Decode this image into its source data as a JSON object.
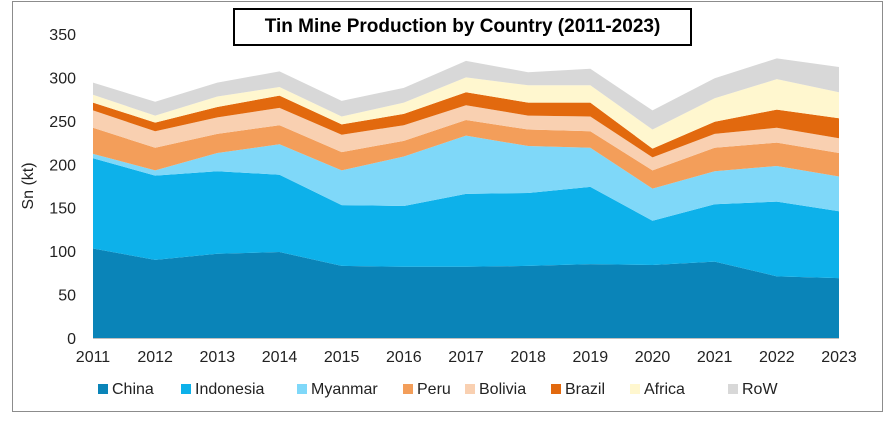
{
  "chart_data": {
    "type": "area",
    "stacked": true,
    "title": "Tin Mine Production by Country (2011-2023)",
    "xlabel": "",
    "ylabel": "Sn (kt)",
    "ylim": [
      0,
      350
    ],
    "yticks": [
      0,
      50,
      100,
      150,
      200,
      250,
      300,
      350
    ],
    "grid": false,
    "legend_position": "bottom",
    "categories": [
      "2011",
      "2012",
      "2013",
      "2014",
      "2015",
      "2016",
      "2017",
      "2018",
      "2019",
      "2020",
      "2021",
      "2022",
      "2023"
    ],
    "series": [
      {
        "name": "China",
        "color": "#0a84b8",
        "values": [
          103,
          90,
          97,
          99,
          83,
          82,
          82,
          83,
          85,
          84,
          88,
          71,
          69
        ]
      },
      {
        "name": "Indonesia",
        "color": "#0db1ea",
        "values": [
          104,
          97,
          95,
          89,
          70,
          70,
          84,
          84,
          89,
          51,
          66,
          86,
          77
        ]
      },
      {
        "name": "Myanmar",
        "color": "#7fd8f9",
        "values": [
          5,
          6,
          21,
          35,
          40,
          57,
          67,
          54,
          45,
          37,
          38,
          41,
          40
        ]
      },
      {
        "name": "Peru",
        "color": "#f39e5a",
        "values": [
          30,
          26,
          22,
          22,
          21,
          18,
          18,
          19,
          19,
          21,
          27,
          27,
          27
        ]
      },
      {
        "name": "Bolivia",
        "color": "#f9d0b1",
        "values": [
          20,
          19,
          19,
          20,
          20,
          18,
          17,
          16,
          17,
          15,
          16,
          17,
          17
        ]
      },
      {
        "name": "Brazil",
        "color": "#e2690e",
        "values": [
          9,
          10,
          12,
          14,
          12,
          13,
          15,
          15,
          16,
          10,
          14,
          21,
          23
        ]
      },
      {
        "name": "Africa",
        "color": "#fff7cf",
        "values": [
          9,
          8,
          12,
          10,
          9,
          13,
          17,
          20,
          20,
          22,
          27,
          35,
          30
        ]
      },
      {
        "name": "RoW",
        "color": "#d8d8d8",
        "values": [
          14,
          16,
          16,
          18,
          18,
          17,
          19,
          15,
          19,
          22,
          23,
          24,
          29
        ]
      }
    ]
  }
}
